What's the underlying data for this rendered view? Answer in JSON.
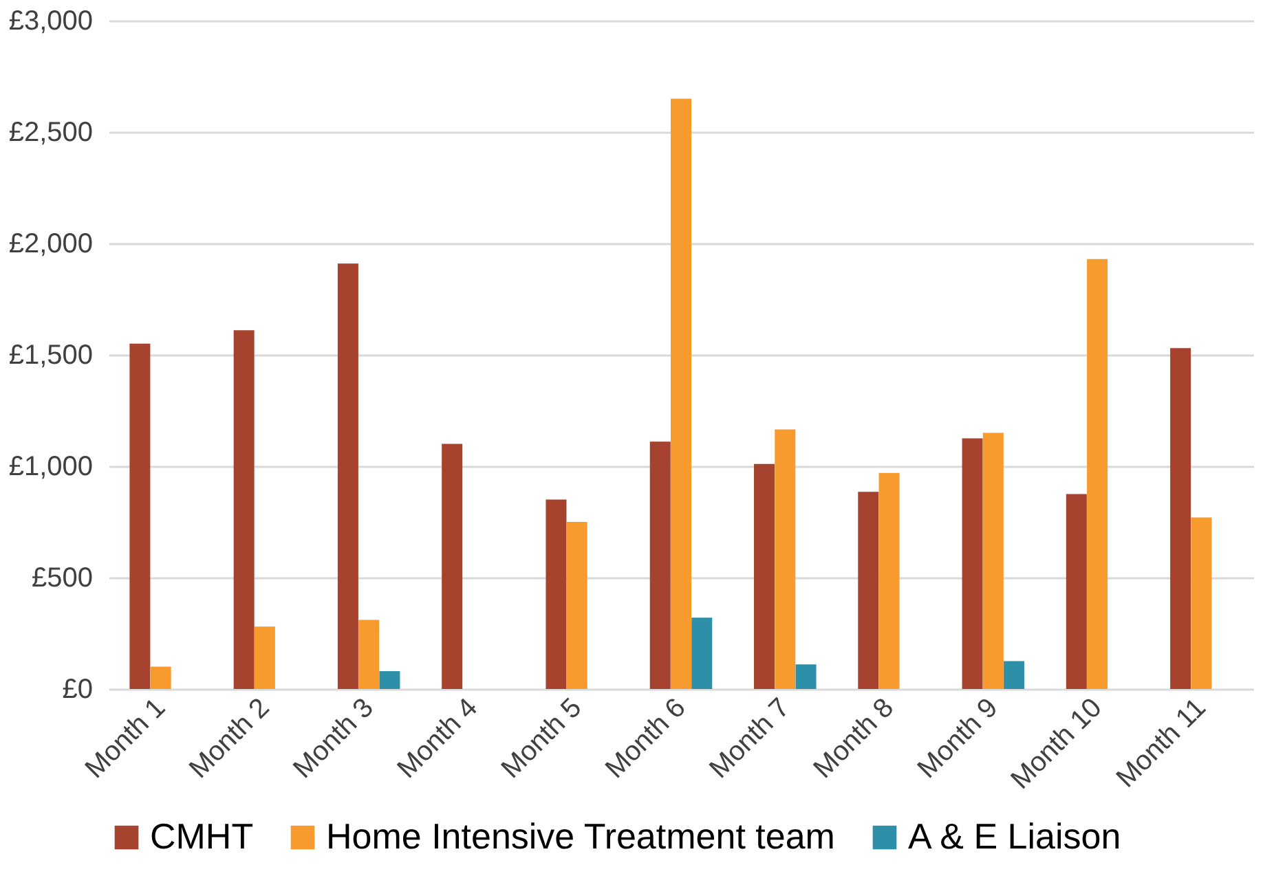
{
  "chart_data": {
    "type": "bar",
    "categories": [
      "Month 1",
      "Month 2",
      "Month 3",
      "Month 4",
      "Month 5",
      "Month 6",
      "Month 7",
      "Month 8",
      "Month 9",
      "Month 10",
      "Month 11"
    ],
    "series": [
      {
        "name": "CMHT",
        "color": "#a5432f",
        "values": [
          1550,
          1610,
          1910,
          1100,
          850,
          1110,
          1010,
          885,
          1125,
          875,
          1530
        ]
      },
      {
        "name": "Home Intensive Treatment team",
        "color": "#f79b2e",
        "values": [
          100,
          280,
          310,
          null,
          750,
          2650,
          1165,
          970,
          1150,
          1930,
          770
        ]
      },
      {
        "name": "A & E Liaison",
        "color": "#2e8fa8",
        "values": [
          null,
          null,
          80,
          null,
          null,
          320,
          110,
          null,
          125,
          null,
          null
        ]
      }
    ],
    "ylim": [
      0,
      3000
    ],
    "yticks": [
      {
        "value": 0,
        "label": "£0"
      },
      {
        "value": 500,
        "label": "£500"
      },
      {
        "value": 1000,
        "label": "£1,000"
      },
      {
        "value": 1500,
        "label": "£1,500"
      },
      {
        "value": 2000,
        "label": "£2,000"
      },
      {
        "value": 2500,
        "label": "£2,500"
      },
      {
        "value": 3000,
        "label": "£3,000"
      }
    ],
    "grid": "y",
    "legend": "bottom"
  }
}
